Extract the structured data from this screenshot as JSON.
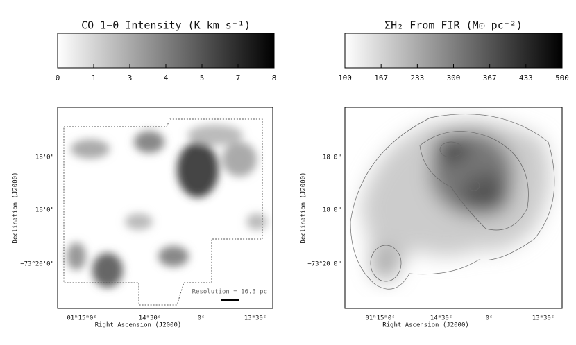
{
  "panels": [
    {
      "title": "CO 1−0 Intensity (K km s⁻¹)",
      "colorbar_ticks": [
        0,
        1,
        3,
        4,
        5,
        7,
        8
      ],
      "x_tick_labels": [
        "01ʰ15ᵐ0ˢ",
        "14ᵐ30ˢ",
        "0ˢ",
        "13ᵐ30ˢ"
      ],
      "y_tick_labels": [
        "18'0\"",
        "18'0\"",
        "−73°20'0\""
      ],
      "x_label": "Right Ascension (J2000)",
      "y_label": "Declination (J2000)",
      "annotation": "Resolution = 16.3 pc"
    },
    {
      "title": "ΣH₂ From FIR (M☉ pc⁻²)",
      "colorbar_ticks": [
        100,
        167,
        233,
        300,
        367,
        433,
        500
      ],
      "x_tick_labels": [
        "01ʰ15ᵐ0ˢ",
        "14ᵐ30ˢ",
        "0ˢ",
        "13ᵐ30ˢ"
      ],
      "y_tick_labels": [
        "18'0\"",
        "18'0\"",
        "−73°20'0\""
      ],
      "x_label": "Right Ascension (J2000)",
      "y_label": "Declination (J2000)"
    }
  ]
}
